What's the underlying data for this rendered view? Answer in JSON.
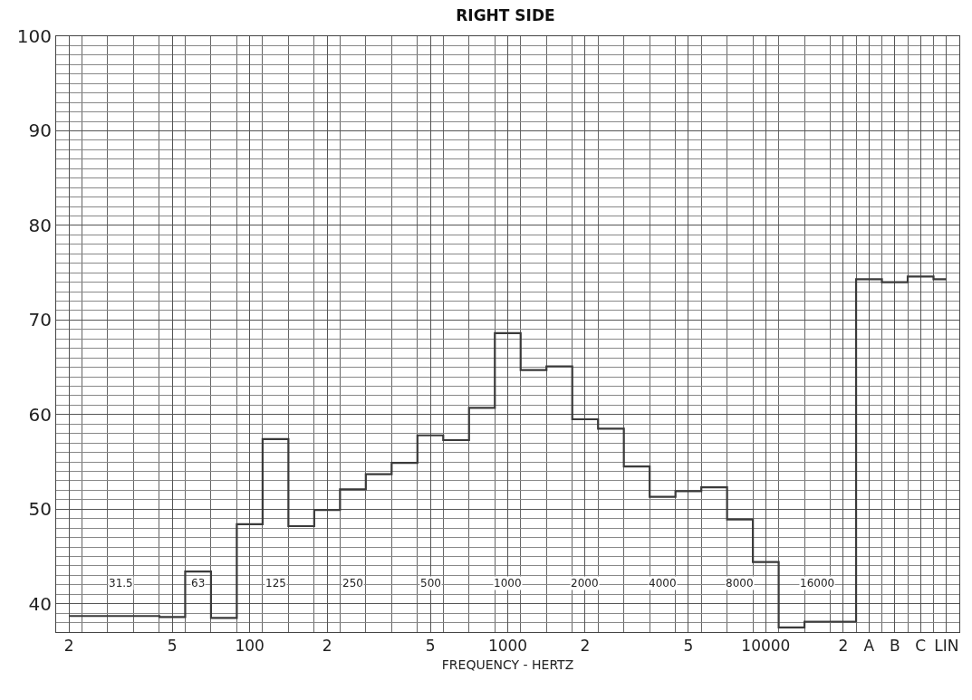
{
  "chart_data": {
    "type": "step",
    "title": "RIGHT SIDE",
    "xlabel": "FREQUENCY - HERTZ",
    "color": "#3a3a3a",
    "line_style": "solid",
    "grid": true,
    "categories": [
      "2",
      null,
      null,
      null,
      "5",
      null,
      null,
      "100",
      null,
      null,
      "2",
      null,
      null,
      null,
      "5",
      null,
      null,
      "1000",
      null,
      null,
      "2",
      null,
      null,
      null,
      "5",
      null,
      null,
      "10000",
      null,
      null,
      "2",
      "A",
      "B",
      "C",
      "LIN"
    ],
    "values": [
      38.7,
      38.7,
      38.7,
      38.7,
      38.6,
      43.4,
      38.5,
      48.4,
      57.4,
      48.2,
      49.9,
      52.1,
      53.7,
      54.9,
      57.8,
      57.3,
      60.7,
      68.6,
      64.7,
      65.1,
      59.5,
      58.5,
      54.5,
      51.3,
      51.9,
      52.3,
      48.9,
      44.4,
      37.5,
      38.1,
      38.1,
      74.3,
      74.0,
      74.6,
      74.3
    ],
    "ylim": [
      37,
      100
    ],
    "yticks": [
      40,
      50,
      60,
      70,
      80,
      90,
      100
    ],
    "annotations": [
      "31.5",
      "63",
      "125",
      "250",
      "500",
      "1000",
      "2000",
      "4000",
      "8000",
      "16000"
    ]
  }
}
